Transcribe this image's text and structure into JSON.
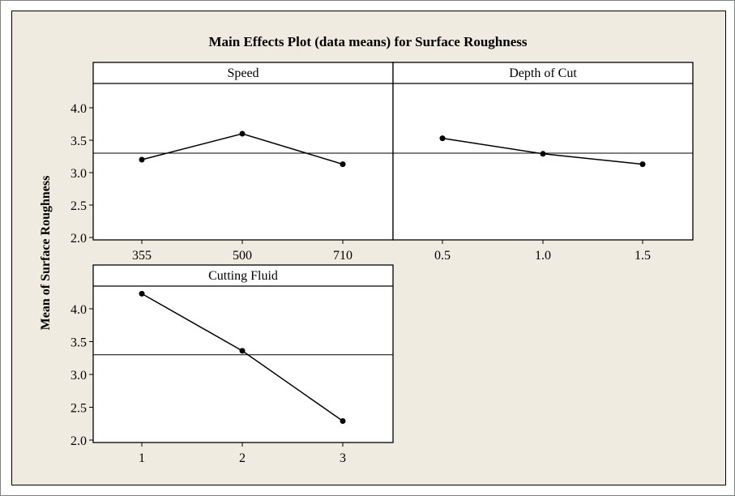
{
  "chart_data": {
    "type": "line",
    "title": "Main Effects Plot (data means) for Surface Roughness",
    "ylabel": "Mean of Surface Roughness",
    "ylim": [
      2.0,
      4.0
    ],
    "yticks": [
      "2.0",
      "2.5",
      "3.0",
      "3.5",
      "4.0"
    ],
    "overall_mean": 3.3,
    "grid": false,
    "panels": [
      {
        "name": "Speed",
        "categories": [
          "355",
          "500",
          "710"
        ],
        "values": [
          3.2,
          3.6,
          3.13
        ]
      },
      {
        "name": "Depth of Cut",
        "categories": [
          "0.5",
          "1.0",
          "1.5"
        ],
        "values": [
          3.53,
          3.29,
          3.13
        ]
      },
      {
        "name": "Cutting Fluid",
        "categories": [
          "1",
          "2",
          "3"
        ],
        "values": [
          4.23,
          3.36,
          2.29
        ]
      }
    ]
  }
}
